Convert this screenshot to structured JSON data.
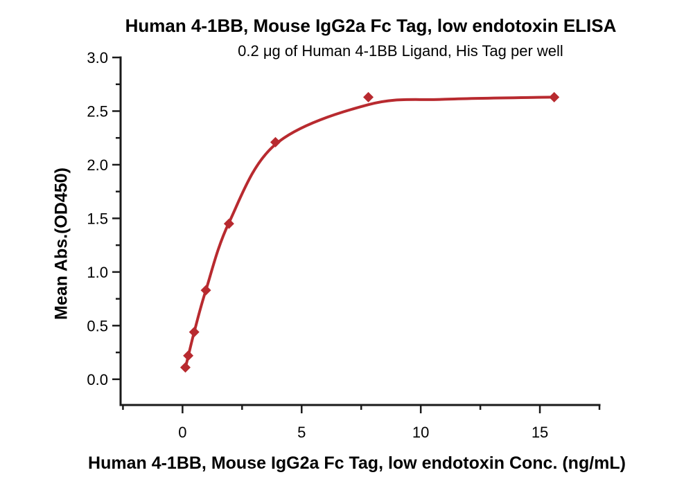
{
  "chart_data": {
    "type": "scatter",
    "title": "Human 4-1BB, Mouse IgG2a Fc Tag, low endotoxin ELISA",
    "subtitle": "0.2 μg of Human 4-1BB Ligand, His Tag per well",
    "xlabel": "Human 4-1BB, Mouse IgG2a Fc Tag, low endotoxin Conc. (ng/mL)",
    "ylabel": "Mean Abs.(OD450)",
    "x": [
      0.12,
      0.24,
      0.49,
      0.98,
      1.95,
      3.9,
      7.8,
      15.6
    ],
    "y": [
      0.11,
      0.22,
      0.44,
      0.83,
      1.45,
      2.21,
      2.63,
      2.63
    ],
    "fit_curve_anchors": [
      [
        0.12,
        0.105
      ],
      [
        0.24,
        0.215
      ],
      [
        0.49,
        0.44
      ],
      [
        0.98,
        0.83
      ],
      [
        1.95,
        1.46
      ],
      [
        3.9,
        2.19
      ],
      [
        7.8,
        2.56
      ],
      [
        11.0,
        2.61
      ],
      [
        15.6,
        2.63
      ]
    ],
    "xlim": [
      -2.6,
      17.5
    ],
    "ylim": [
      -0.24,
      3.0
    ],
    "x_ticks": {
      "major": [
        0,
        5,
        10,
        15
      ],
      "minor": [
        -2.5,
        2.5,
        7.5,
        12.5,
        17.5
      ]
    },
    "y_ticks": {
      "major": [
        0.0,
        0.5,
        1.0,
        1.5,
        2.0,
        2.5,
        3.0
      ],
      "minor": [
        0.25,
        0.75,
        1.25,
        1.75,
        2.25,
        2.75
      ]
    },
    "grid": false,
    "legend": "none",
    "marker_shape": "diamond",
    "colors": {
      "series": "#B82A2F",
      "axis": "#1A1A1A",
      "text": "#000000",
      "background": "#FFFFFF"
    }
  }
}
